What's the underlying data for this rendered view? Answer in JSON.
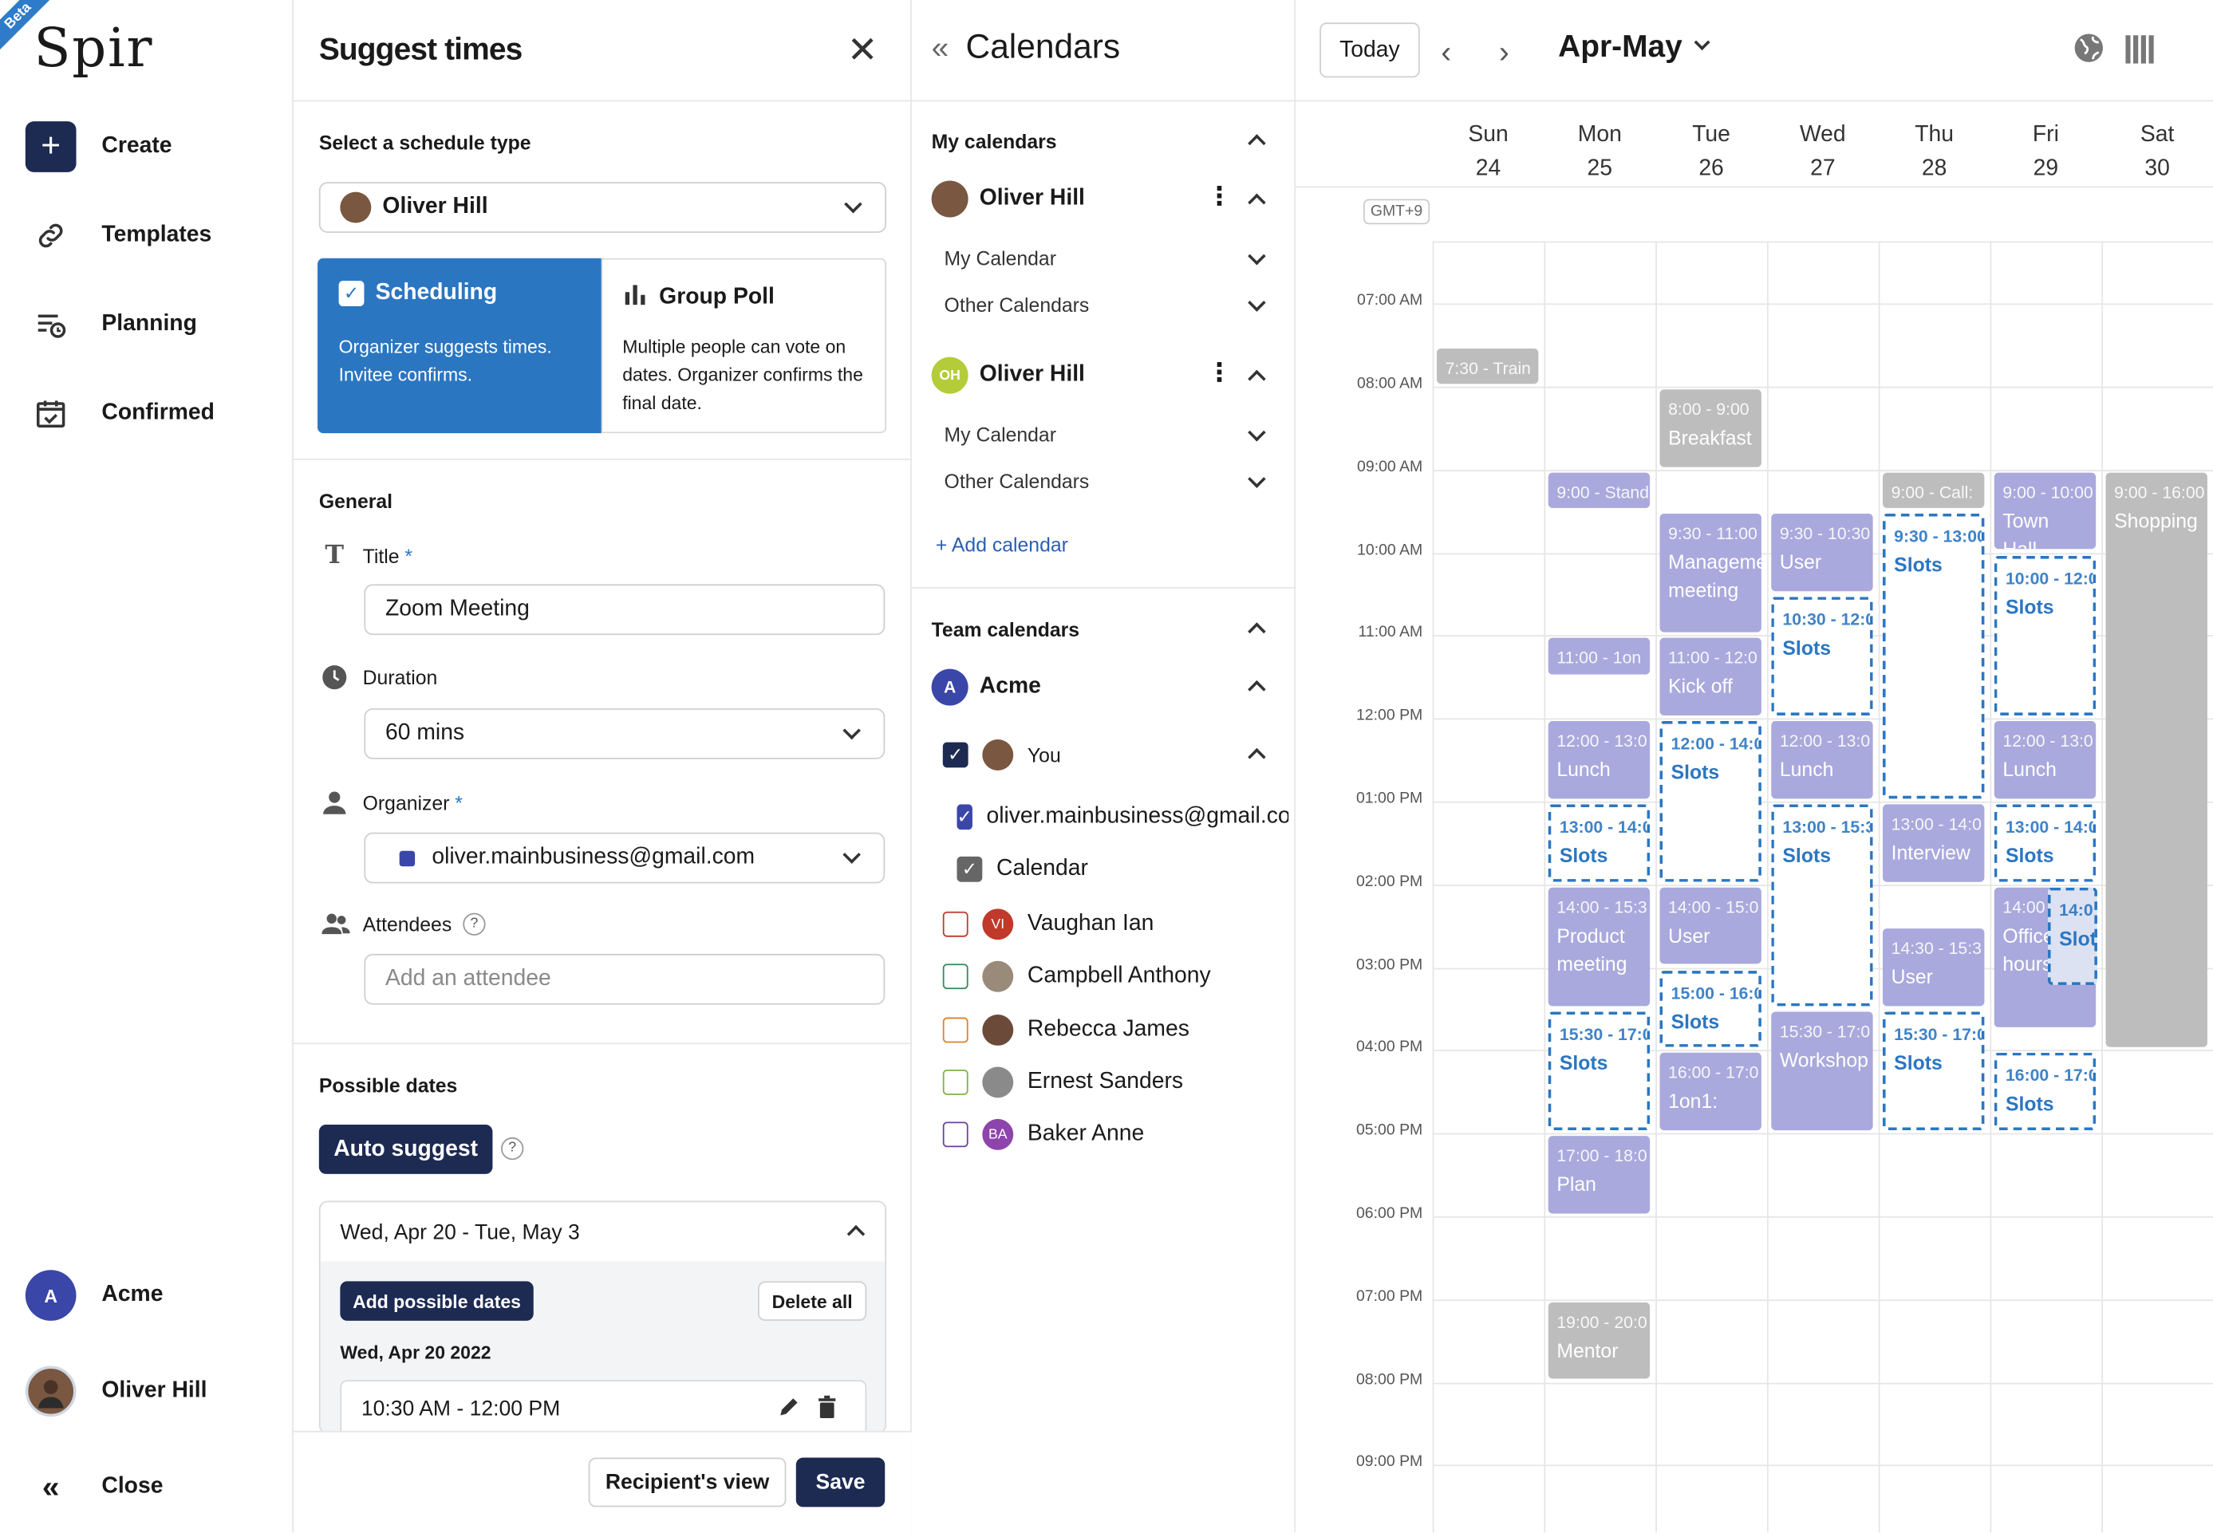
{
  "nav": {
    "badge": "Beta",
    "logo": "Spir",
    "create": "Create",
    "templates": "Templates",
    "planning": "Planning",
    "confirmed": "Confirmed",
    "workspace": "Acme",
    "workspace_initial": "A",
    "user": "Oliver Hill",
    "close": "Close"
  },
  "suggest": {
    "title": "Suggest times",
    "schedule_type_label": "Select a schedule type",
    "owner": "Oliver Hill",
    "scheduling": {
      "title": "Scheduling",
      "desc": "Organizer suggests times. Invitee confirms."
    },
    "group_poll": {
      "title": "Group Poll",
      "desc": "Multiple people can vote on dates. Organizer confirms the final date."
    },
    "general_label": "General",
    "title_label": "Title",
    "required_mark": "*",
    "title_value": "Zoom Meeting",
    "duration_label": "Duration",
    "duration_value": "60 mins",
    "organizer_label": "Organizer",
    "organizer_value": "oliver.mainbusiness@gmail.com",
    "attendees_label": "Attendees",
    "attendee_placeholder": "Add an attendee",
    "help": "?",
    "possible_dates_label": "Possible dates",
    "auto_suggest": "Auto suggest",
    "date_range": "Wed, Apr 20 - Tue, May 3",
    "add_possible_dates": "Add possible dates",
    "delete_all": "Delete all",
    "date_heading": "Wed, Apr 20 2022",
    "slot_time": "10:30 AM - 12:00 PM",
    "recipients_view": "Recipient's view",
    "save": "Save"
  },
  "calendars": {
    "title": "Calendars",
    "my_calendars": "My calendars",
    "owners": [
      {
        "name": "Oliver Hill",
        "initials": "",
        "sub": [
          "My Calendar",
          "Other Calendars"
        ]
      },
      {
        "name": "Oliver Hill",
        "initials": "OH",
        "sub": [
          "My Calendar",
          "Other Calendars"
        ]
      }
    ],
    "add_calendar": "+ Add calendar",
    "team_calendars": "Team calendars",
    "team": "Acme",
    "team_initial": "A",
    "you": "You",
    "you_calendars": [
      "oliver.mainbusiness@gmail.com",
      "Calendar"
    ],
    "members": [
      {
        "name": "Vaughan Ian",
        "initials": "VI",
        "color": "#c0392b",
        "av": "#c0392b"
      },
      {
        "name": "Campbell Anthony",
        "initials": "",
        "color": "#2e8b57",
        "av": "#9a8a7a"
      },
      {
        "name": "Rebecca James",
        "initials": "",
        "color": "#e67e22",
        "av": "#6b4a3a"
      },
      {
        "name": "Ernest Sanders",
        "initials": "",
        "color": "#7cb342",
        "av": "#8a8a8a"
      },
      {
        "name": "Baker Anne",
        "initials": "BA",
        "color": "#6a3fa0",
        "av": "#8e44ad"
      }
    ]
  },
  "calendar": {
    "today": "Today",
    "range": "Apr-May",
    "timezone": "GMT+9",
    "days": [
      {
        "name": "Sun",
        "date": "24"
      },
      {
        "name": "Mon",
        "date": "25"
      },
      {
        "name": "Tue",
        "date": "26"
      },
      {
        "name": "Wed",
        "date": "27"
      },
      {
        "name": "Thu",
        "date": "28"
      },
      {
        "name": "Fri",
        "date": "29"
      },
      {
        "name": "Sat",
        "date": "30"
      }
    ],
    "hours": [
      "07:00 AM",
      "08:00 AM",
      "09:00 AM",
      "10:00 AM",
      "11:00 AM",
      "12:00 PM",
      "01:00 PM",
      "02:00 PM",
      "03:00 PM",
      "04:00 PM",
      "05:00 PM",
      "06:00 PM",
      "07:00 PM",
      "08:00 PM",
      "09:00 PM"
    ],
    "start_hour": 6.25,
    "events": [
      {
        "day": 0,
        "start": 7.5,
        "end": 8.0,
        "kind": "g",
        "time": "7:30 - Train",
        "title": ""
      },
      {
        "day": 1,
        "start": 9.0,
        "end": 9.5,
        "kind": "p",
        "time": "9:00 - Stand",
        "title": ""
      },
      {
        "day": 1,
        "start": 11.0,
        "end": 11.5,
        "kind": "p",
        "time": "11:00 - 1on",
        "title": ""
      },
      {
        "day": 1,
        "start": 12.0,
        "end": 13.0,
        "kind": "p",
        "time": "12:00 - 13:0",
        "title": "Lunch"
      },
      {
        "day": 1,
        "start": 13.0,
        "end": 14.0,
        "kind": "slot",
        "time": "13:00 - 14:0",
        "title": "Slots"
      },
      {
        "day": 1,
        "start": 14.0,
        "end": 15.5,
        "kind": "p",
        "time": "14:00 - 15:3",
        "title": "Product meeting"
      },
      {
        "day": 1,
        "start": 15.5,
        "end": 17.0,
        "kind": "slot",
        "time": "15:30 - 17:0",
        "title": "Slots"
      },
      {
        "day": 1,
        "start": 17.0,
        "end": 18.0,
        "kind": "p",
        "time": "17:00 - 18:0",
        "title": "Plan"
      },
      {
        "day": 1,
        "start": 19.0,
        "end": 20.0,
        "kind": "g",
        "time": "19:00 - 20:0",
        "title": "Mentor"
      },
      {
        "day": 2,
        "start": 8.0,
        "end": 9.0,
        "kind": "g",
        "time": "8:00 - 9:00",
        "title": "Breakfast"
      },
      {
        "day": 2,
        "start": 9.5,
        "end": 11.0,
        "kind": "p",
        "time": "9:30 - 11:00",
        "title": "Management meeting"
      },
      {
        "day": 2,
        "start": 11.0,
        "end": 12.0,
        "kind": "p",
        "time": "11:00 - 12:0",
        "title": "Kick off"
      },
      {
        "day": 2,
        "start": 12.0,
        "end": 14.0,
        "kind": "slot",
        "time": "12:00 - 14:0",
        "title": "Slots"
      },
      {
        "day": 2,
        "start": 14.0,
        "end": 15.0,
        "kind": "p",
        "time": "14:00 - 15:0",
        "title": "User"
      },
      {
        "day": 2,
        "start": 15.0,
        "end": 16.0,
        "kind": "slot",
        "time": "15:00 - 16:0",
        "title": "Slots"
      },
      {
        "day": 2,
        "start": 16.0,
        "end": 17.0,
        "kind": "p",
        "time": "16:00 - 17:0",
        "title": "1on1:"
      },
      {
        "day": 3,
        "start": 9.5,
        "end": 10.5,
        "kind": "p",
        "time": "9:30 - 10:30",
        "title": "User"
      },
      {
        "day": 3,
        "start": 10.5,
        "end": 12.0,
        "kind": "slot",
        "time": "10:30 - 12:0",
        "title": "Slots"
      },
      {
        "day": 3,
        "start": 12.0,
        "end": 13.0,
        "kind": "p",
        "time": "12:00 - 13:0",
        "title": "Lunch"
      },
      {
        "day": 3,
        "start": 13.0,
        "end": 15.5,
        "kind": "slot",
        "time": "13:00 - 15:3",
        "title": "Slots"
      },
      {
        "day": 3,
        "start": 15.5,
        "end": 17.0,
        "kind": "p",
        "time": "15:30 - 17:0",
        "title": "Workshop"
      },
      {
        "day": 4,
        "start": 9.0,
        "end": 9.5,
        "kind": "g",
        "time": "9:00 - Call:",
        "title": ""
      },
      {
        "day": 4,
        "start": 9.5,
        "end": 13.0,
        "kind": "slot",
        "time": "9:30 - 13:00",
        "title": "Slots"
      },
      {
        "day": 4,
        "start": 13.0,
        "end": 14.0,
        "kind": "p",
        "time": "13:00 - 14:0",
        "title": "Interview"
      },
      {
        "day": 4,
        "start": 14.5,
        "end": 15.5,
        "kind": "p",
        "time": "14:30 - 15:3",
        "title": "User"
      },
      {
        "day": 4,
        "start": 15.5,
        "end": 17.0,
        "kind": "slot",
        "time": "15:30 - 17:0",
        "title": "Slots"
      },
      {
        "day": 5,
        "start": 9.0,
        "end": 10.0,
        "kind": "p",
        "time": "9:00 - 10:00",
        "title": "Town Hall"
      },
      {
        "day": 5,
        "start": 10.0,
        "end": 12.0,
        "kind": "slot",
        "time": "10:00 - 12:0",
        "title": "Slots"
      },
      {
        "day": 5,
        "start": 12.0,
        "end": 13.0,
        "kind": "p",
        "time": "12:00 - 13:0",
        "title": "Lunch"
      },
      {
        "day": 5,
        "start": 13.0,
        "end": 14.0,
        "kind": "slot",
        "time": "13:00 - 14:0",
        "title": "Slots"
      },
      {
        "day": 5,
        "start": 14.0,
        "end": 15.75,
        "kind": "p",
        "time": "14:00",
        "title": "Office hours"
      },
      {
        "day": 5,
        "start": 14.0,
        "end": 15.25,
        "kind": "slot2",
        "time": "14:0",
        "title": "Slots",
        "half": true
      },
      {
        "day": 5,
        "start": 16.0,
        "end": 17.0,
        "kind": "slot",
        "time": "16:00 - 17:0",
        "title": "Slots"
      },
      {
        "day": 6,
        "start": 9.0,
        "end": 16.0,
        "kind": "g",
        "time": "9:00 - 16:00",
        "title": "Shopping"
      }
    ]
  }
}
